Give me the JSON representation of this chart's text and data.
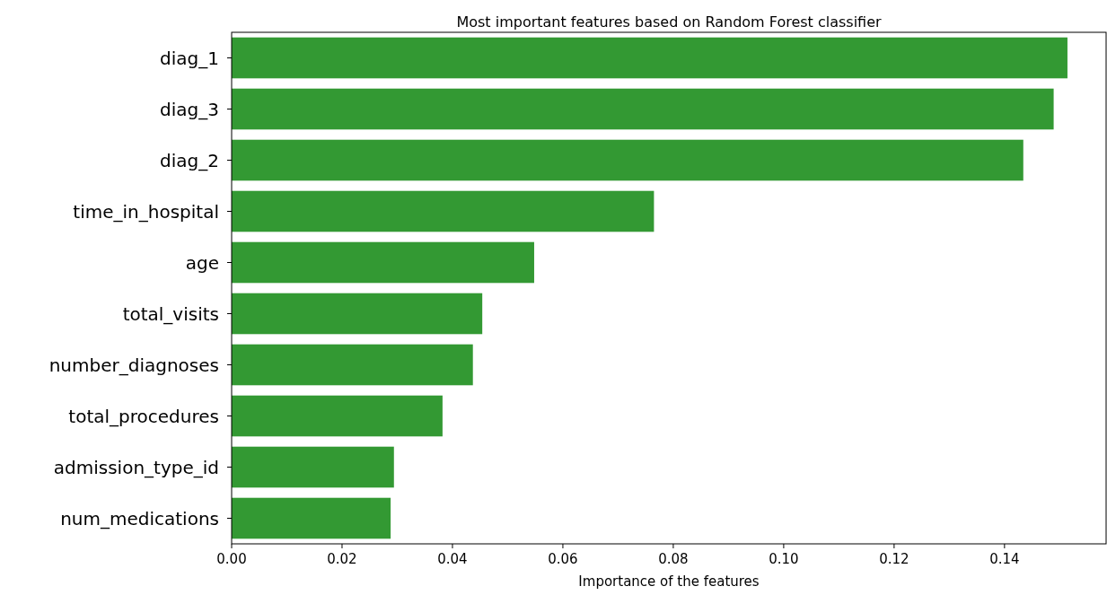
{
  "chart_data": {
    "type": "bar",
    "orientation": "horizontal",
    "title": "Most important features based on Random Forest classifier",
    "xlabel": "Importance of the features",
    "categories": [
      "diag_1",
      "diag_3",
      "diag_2",
      "time_in_hospital",
      "age",
      "total_visits",
      "number_diagnoses",
      "total_procedures",
      "admission_type_id",
      "num_medications"
    ],
    "values": [
      0.1514,
      0.1489,
      0.1434,
      0.0765,
      0.0548,
      0.0454,
      0.0437,
      0.0382,
      0.0294,
      0.0288
    ],
    "color": "#339933",
    "xlim": [
      0,
      0.1584
    ],
    "xticks": [
      {
        "value": 0,
        "label": "0.00"
      },
      {
        "value": 0.02,
        "label": "0.02"
      },
      {
        "value": 0.04,
        "label": "0.04"
      },
      {
        "value": 0.06,
        "label": "0.06"
      },
      {
        "value": 0.08,
        "label": "0.08"
      },
      {
        "value": 0.1,
        "label": "0.10"
      },
      {
        "value": 0.12,
        "label": "0.12"
      },
      {
        "value": 0.14,
        "label": "0.14"
      }
    ]
  }
}
